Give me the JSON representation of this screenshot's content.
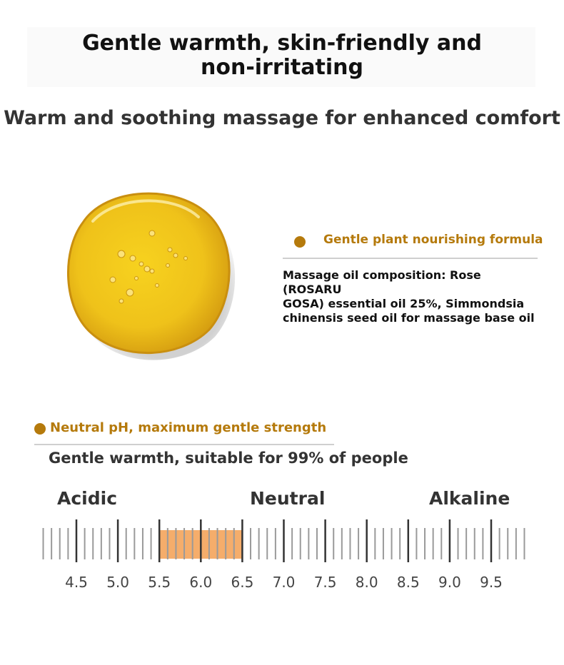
{
  "header": {
    "title_line1": "Gentle warmth, skin-friendly and",
    "title_line2": "non-irritating",
    "subtitle": "Warm and soothing massage for enhanced comfort"
  },
  "formula": {
    "heading": "Gentle plant nourishing formula",
    "composition_line1": "Massage oil composition: Rose (ROSARU",
    "composition_line2": "GOSA) essential oil 25%, Simmondsia",
    "composition_line3": "chinensis seed oil for massage base oil"
  },
  "ph_section": {
    "heading": "Neutral pH, maximum gentle strength",
    "note": "Gentle warmth, suitable for 99% of people",
    "labels": {
      "acidic": "Acidic",
      "neutral": "Neutral",
      "alkaline": "Alkaline"
    },
    "scale": {
      "ticks": [
        "4.5",
        "5.0",
        "5.5",
        "6.0",
        "6.5",
        "7.0",
        "7.5",
        "8.0",
        "8.5",
        "9.0",
        "9.5"
      ],
      "highlight_range": [
        5.5,
        6.5
      ],
      "highlight_color": "#f5ad6b"
    }
  },
  "colors": {
    "accent": "#b57a0c",
    "oil": "#f2c51c"
  }
}
